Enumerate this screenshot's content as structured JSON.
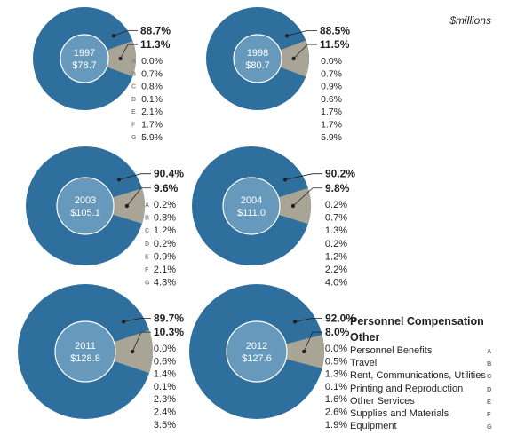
{
  "unit_label": "$millions",
  "colors": {
    "personnel": "#2f6f9d",
    "other": "#a8a496",
    "center": "#6699bb",
    "connector": "#231f20"
  },
  "chart_data": [
    {
      "type": "pie",
      "year": "1997",
      "total": "$78.7",
      "personnel": "88.7%",
      "other": "11.3%",
      "other_breakdown": [
        "0.0%",
        "0.7%",
        "0.8%",
        "0.1%",
        "2.1%",
        "1.7%",
        "5.9%"
      ]
    },
    {
      "type": "pie",
      "year": "1998",
      "total": "$80.7",
      "personnel": "88.5%",
      "other": "11.5%",
      "other_breakdown": [
        "0.0%",
        "0.7%",
        "0.9%",
        "0.6%",
        "1.7%",
        "1.7%",
        "5.9%"
      ]
    },
    {
      "type": "pie",
      "year": "2003",
      "total": "$105.1",
      "personnel": "90.4%",
      "other": "9.6%",
      "other_breakdown": [
        "0.2%",
        "0.8%",
        "1.2%",
        "0.2%",
        "0.9%",
        "2.1%",
        "4.3%"
      ]
    },
    {
      "type": "pie",
      "year": "2004",
      "total": "$111.0",
      "personnel": "90.2%",
      "other": "9.8%",
      "other_breakdown": [
        "0.2%",
        "0.7%",
        "1.3%",
        "0.2%",
        "1.2%",
        "2.2%",
        "4.0%"
      ]
    },
    {
      "type": "pie",
      "year": "2011",
      "total": "$128.8",
      "personnel": "89.7%",
      "other": "10.3%",
      "other_breakdown": [
        "0.0%",
        "0.6%",
        "1.4%",
        "0.1%",
        "2.3%",
        "2.4%",
        "3.5%"
      ]
    },
    {
      "type": "pie",
      "year": "2012",
      "total": "$127.6",
      "personnel": "92.0%",
      "other": "8.0%",
      "other_breakdown": [
        "0.0%",
        "0.5%",
        "1.3%",
        "0.1%",
        "1.6%",
        "2.6%",
        "1.9%"
      ]
    }
  ],
  "breakdown_letters": [
    "A",
    "B",
    "C",
    "D",
    "E",
    "F",
    "G"
  ],
  "legend": {
    "main": [
      "Personnel Compensation",
      "Other"
    ],
    "sub": [
      "Personnel Benefits",
      "Travel",
      "Rent, Communications, Utilities",
      "Printing and Reproduction",
      "Other Services",
      "Supplies and Materials",
      "Equipment"
    ]
  }
}
